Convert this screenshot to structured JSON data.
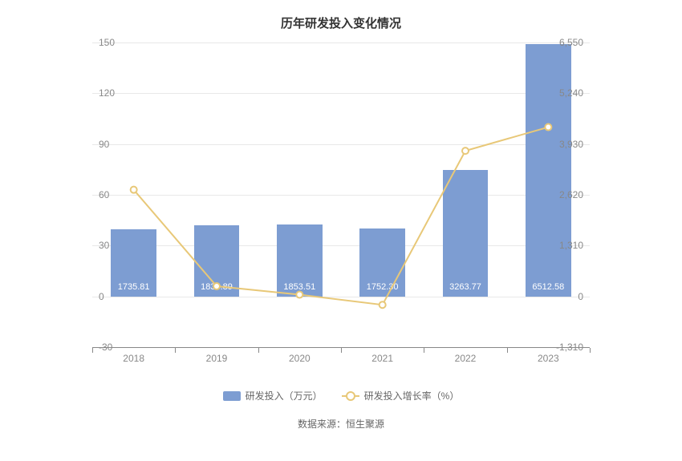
{
  "title": "历年研发投入变化情况",
  "chart": {
    "type": "bar+line",
    "background_color": "#ffffff",
    "grid_color": "#e8e8e8",
    "axis_color": "#888888",
    "tick_font_size": 12,
    "tick_font_color": "#888888",
    "categories": [
      "2018",
      "2019",
      "2020",
      "2021",
      "2022",
      "2023"
    ],
    "left_axis": {
      "min": -1310,
      "max": 6550,
      "ticks": [
        -1310,
        0,
        1310,
        2620,
        3930,
        5240,
        6550
      ]
    },
    "right_axis": {
      "min": -30,
      "max": 150,
      "ticks": [
        -30,
        0,
        30,
        60,
        90,
        120,
        150
      ]
    },
    "bar_series": {
      "name": "研发投入（万元）",
      "color": "#7d9dd2",
      "bar_width_ratio": 0.55,
      "label_font_size": 11,
      "label_color": "#ffffff",
      "values": [
        1735.81,
        1839.89,
        1853.51,
        1752.3,
        3263.77,
        6512.58
      ],
      "labels": [
        "1735.81",
        "1839.89",
        "1853.51",
        "1752.30",
        "3263.77",
        "6512.58"
      ]
    },
    "line_series": {
      "name": "研发投入增长率（%）",
      "color": "#e8c878",
      "line_width": 2,
      "marker_radius": 4,
      "marker_fill": "#ffffff",
      "values": [
        63,
        6,
        1,
        -5,
        86,
        100
      ]
    }
  },
  "legend": {
    "font_size": 12,
    "font_color": "#666666",
    "items": [
      {
        "label": "研发投入（万元）",
        "type": "bar",
        "color": "#7d9dd2"
      },
      {
        "label": "研发投入增长率（%）",
        "type": "line",
        "color": "#e8c878"
      }
    ]
  },
  "data_source": "数据来源：恒生聚源",
  "data_source_font_size": 12,
  "data_source_color": "#666666"
}
